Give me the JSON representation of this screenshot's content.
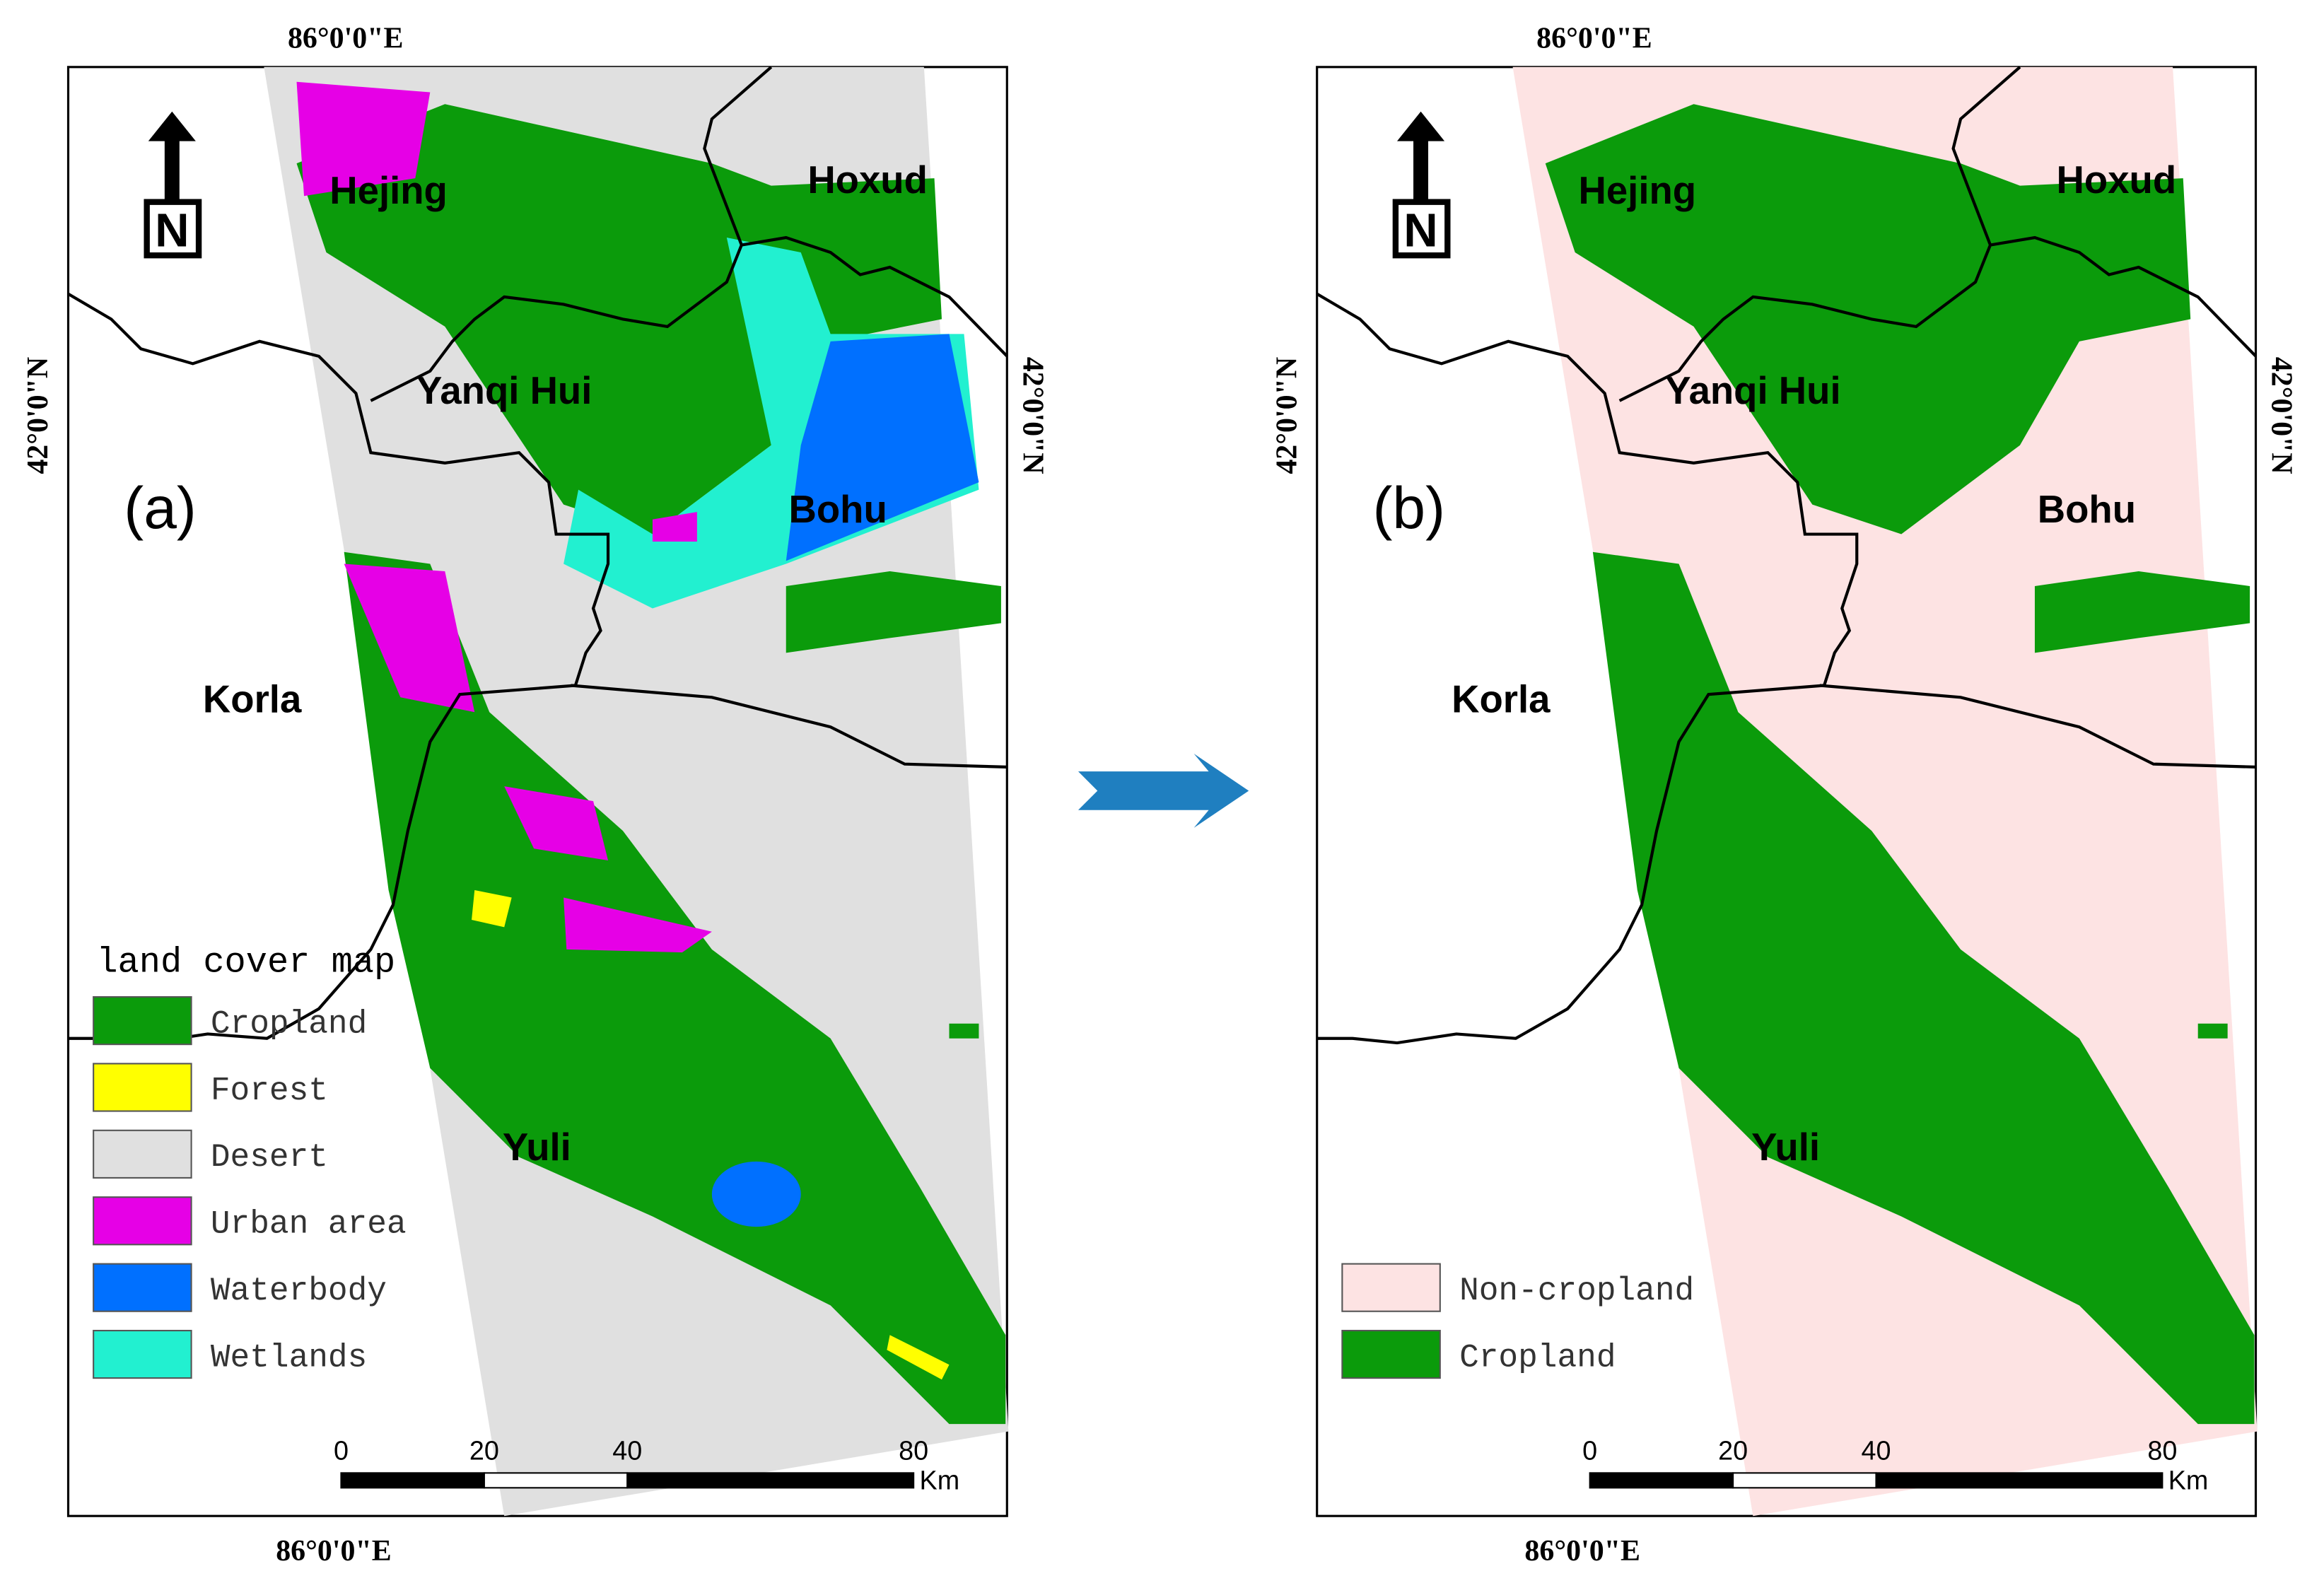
{
  "panels": [
    {
      "label": "(a)",
      "lon_top": "86°0'0\"E",
      "lon_bottom": "86°0'0\"E",
      "lat_left": "42°0'0\"N",
      "lat_right": "42°0'0\"N",
      "north": "N",
      "places": [
        "Hejing",
        "Hoxud",
        "Yanqi Hui",
        "Bohu",
        "Korla",
        "Yuli"
      ],
      "legend": {
        "title": "land cover map",
        "items": [
          {
            "name": "Cropland",
            "color": "#0b9b0b"
          },
          {
            "name": "Forest",
            "color": "#ffff00"
          },
          {
            "name": "Desert",
            "color": "#e0e0e0"
          },
          {
            "name": "Urban area",
            "color": "#e600e6"
          },
          {
            "name": "Waterbody",
            "color": "#0070ff"
          },
          {
            "name": "Wetlands",
            "color": "#22f0d0"
          }
        ]
      },
      "scale_bar": {
        "ticks": [
          0,
          20,
          40,
          80
        ],
        "unit": "Km"
      }
    },
    {
      "label": "(b)",
      "lon_top": "86°0'0\"E",
      "lon_bottom": "86°0'0\"E",
      "lat_left": "42°0'0\"N",
      "lat_right": "42°0'0\"N",
      "north": "N",
      "places": [
        "Hejing",
        "Hoxud",
        "Yanqi Hui",
        "Bohu",
        "Korla",
        "Yuli"
      ],
      "legend": {
        "items": [
          {
            "name": "Non-cropland",
            "color": "#fde3e3"
          },
          {
            "name": "Cropland",
            "color": "#0b9b0b"
          }
        ]
      },
      "scale_bar": {
        "ticks": [
          0,
          20,
          40,
          80
        ],
        "unit": "Km"
      }
    }
  ]
}
